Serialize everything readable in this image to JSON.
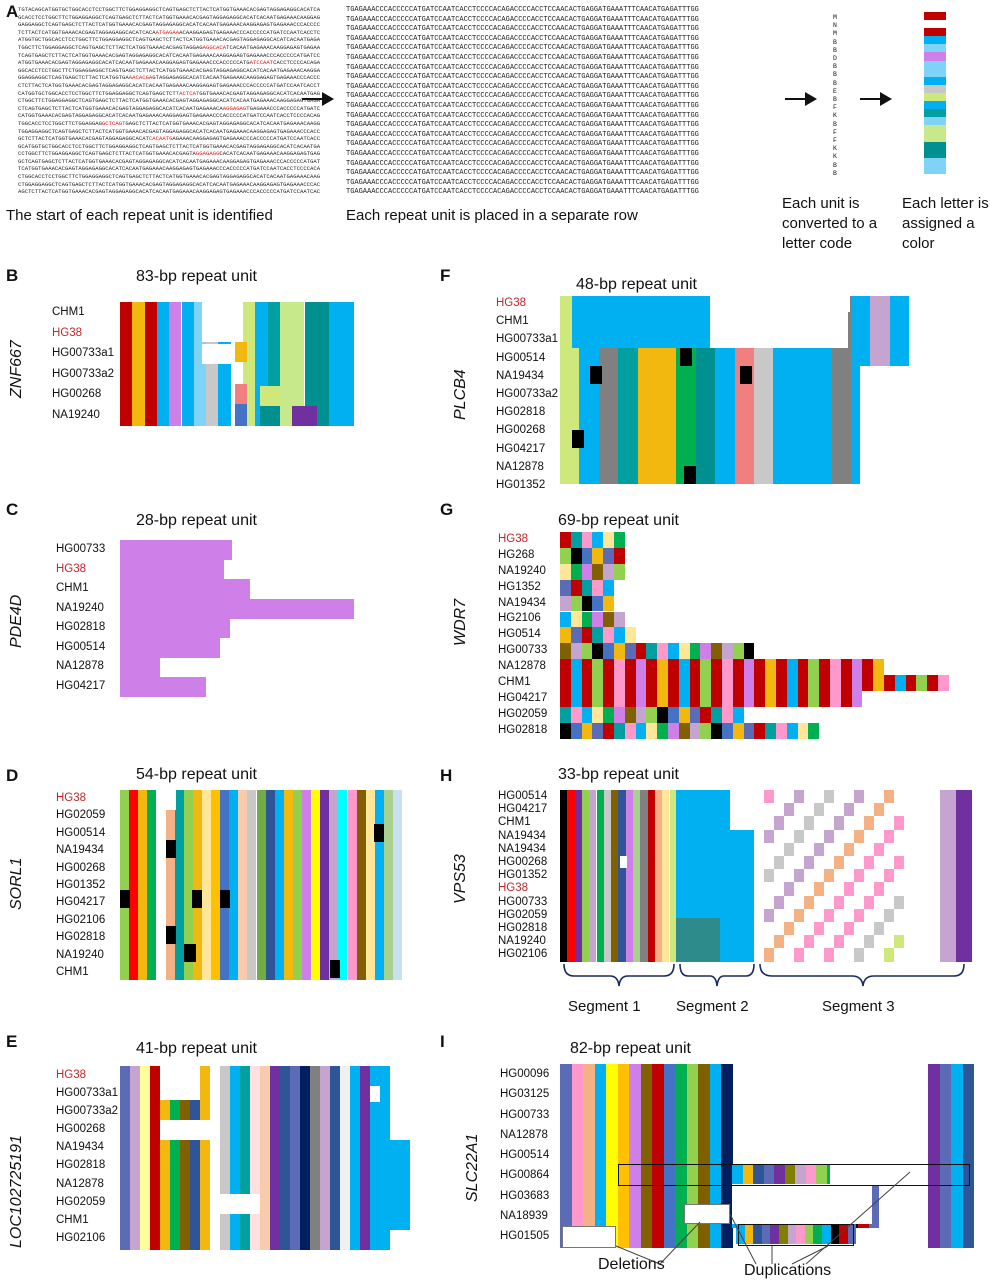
{
  "panel_a": {
    "letter": "A",
    "captions": [
      "The start of each repeat unit is identified",
      "Each repeat unit is placed in a separate row",
      "Each unit is converted to a letter code",
      "Each letter is assigned a color"
    ],
    "letter_codes": [
      "M",
      "N",
      "M",
      "B",
      "B",
      "D",
      "B",
      "B",
      "B",
      "E",
      "B",
      "F",
      "K",
      "B",
      "F",
      "F",
      "K",
      "K",
      "B",
      "B"
    ],
    "swatch_colors": [
      "#c00000",
      "#ffffff",
      "#c00000",
      "#00b0f0",
      "#7fd3f7",
      "#cf80e8",
      "#7fd3f7",
      "#7fd3f7",
      "#00b0f0",
      "#c8c8c8",
      "#cfe87c",
      "#00b0f0",
      "#00a0a0",
      "#7fd3f7",
      "#c8e88c",
      "#c8e88c",
      "#009090",
      "#009090",
      "#7fd3f7",
      "#7fd3f7"
    ],
    "row_sequence": "TGAGAAACCCACCCCCATGATCCAATCACCTCCCCACAGACCCCACCTCCAACACTGAGGATGAAATTTCAACATGAGATTTGG",
    "row_count": 23
  },
  "panels": [
    {
      "letter": "B",
      "title": "83-bp repeat unit",
      "gene": "ZNF667",
      "samples": [
        "CHM1",
        "HG38",
        "HG00733a1",
        "HG00733a2",
        "HG00268",
        "NA19240"
      ],
      "reference": "HG38"
    },
    {
      "letter": "C",
      "title": "28-bp repeat unit",
      "gene": "PDE4D",
      "samples": [
        "HG00733",
        "HG38",
        "CHM1",
        "NA19240",
        "HG02818",
        "HG00514",
        "NA12878",
        "HG04217"
      ],
      "reference": "HG38"
    },
    {
      "letter": "D",
      "title": "54-bp repeat unit",
      "gene": "SORL1",
      "samples": [
        "HG38",
        "HG02059",
        "HG00514",
        "NA19434",
        "HG00268",
        "HG01352",
        "HG04217",
        "HG02106",
        "HG02818",
        "NA19240",
        "CHM1"
      ],
      "reference": "HG38"
    },
    {
      "letter": "E",
      "title": "41-bp repeat unit",
      "gene": "LOC102725191",
      "samples": [
        "HG38",
        "HG00733a1",
        "HG00733a2",
        "HG00268",
        "NA19434",
        "HG02818",
        "NA12878",
        "HG02059",
        "CHM1",
        "HG02106"
      ],
      "reference": "HG38"
    },
    {
      "letter": "F",
      "title": "48-bp repeat unit",
      "gene": "PLCB4",
      "samples": [
        "HG38",
        "CHM1",
        "HG00733a1",
        "HG00514",
        "NA19434",
        "HG00733a2",
        "HG02818",
        "HG00268",
        "HG04217",
        "NA12878",
        "HG01352"
      ],
      "reference": "HG38"
    },
    {
      "letter": "G",
      "title": "69-bp repeat unit",
      "gene": "WDR7",
      "samples": [
        "HG38",
        "HG268",
        "NA19240",
        "HG1352",
        "NA19434",
        "HG2106",
        "HG0514",
        "HG00733",
        "NA12878",
        "CHM1",
        "HG04217",
        "HG02059",
        "HG02818"
      ],
      "reference": "HG38"
    },
    {
      "letter": "H",
      "title": "33-bp repeat unit",
      "gene": "VPS53",
      "samples": [
        "HG00514",
        "HG04217",
        "CHM1",
        "NA19434",
        "NA19434",
        "HG00268",
        "HG01352",
        "HG38",
        "HG00733",
        "HG02059",
        "HG02818",
        "NA19240",
        "HG02106"
      ],
      "reference": "HG38",
      "segments": [
        "Segment 1",
        "Segment 2",
        "Segment 3"
      ]
    },
    {
      "letter": "I",
      "title": "82-bp repeat unit",
      "gene": "SLC22A1",
      "samples": [
        "HG00096",
        "HG03125",
        "HG00733",
        "NA12878",
        "HG00514",
        "HG00864",
        "HG03683",
        "NA18939",
        "HG01505"
      ],
      "reference": "",
      "annotations": [
        "Deletions",
        "Duplications"
      ]
    }
  ]
}
